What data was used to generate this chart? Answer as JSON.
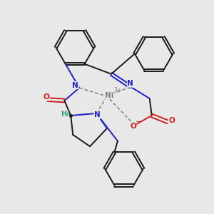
{
  "bg_color": "#e8e8e8",
  "bond_color": "#1a1a1a",
  "n_color": "#2020cc",
  "o_color": "#cc2020",
  "ni_color": "#808080",
  "h_color": "#20a080",
  "figsize": [
    3.0,
    3.0
  ],
  "dpi": 100,
  "xlim": [
    0,
    10
  ],
  "ylim": [
    0,
    10
  ],
  "lw": 1.4
}
